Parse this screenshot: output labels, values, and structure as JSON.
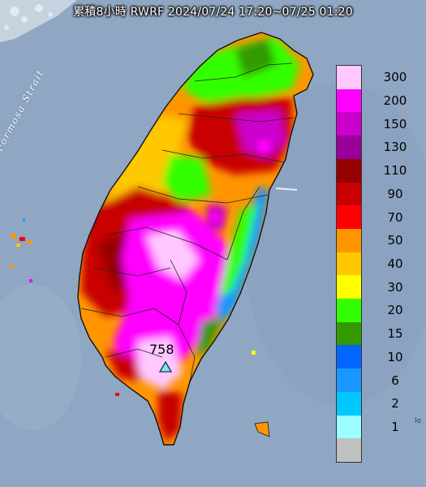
{
  "title": "累積8小時 RWRF 2024/07/24 17:20~07/25 01:20",
  "map_label": "Formosa Strait",
  "max_marker": {
    "value": "758",
    "icon": "triangle-icon",
    "color": "#7fe8e3"
  },
  "edge_label": "lo",
  "legend": {
    "items": [
      {
        "label": "300",
        "color": "#ffc8ff"
      },
      {
        "label": "200",
        "color": "#ff00ff"
      },
      {
        "label": "150",
        "color": "#cc00cc"
      },
      {
        "label": "130",
        "color": "#990099"
      },
      {
        "label": "110",
        "color": "#960000"
      },
      {
        "label": "90",
        "color": "#c80000"
      },
      {
        "label": "70",
        "color": "#ff0000"
      },
      {
        "label": "50",
        "color": "#ff9600"
      },
      {
        "label": "40",
        "color": "#ffc800"
      },
      {
        "label": "30",
        "color": "#ffff00"
      },
      {
        "label": "20",
        "color": "#33ff00"
      },
      {
        "label": "15",
        "color": "#339900"
      },
      {
        "label": "10",
        "color": "#0066ff"
      },
      {
        "label": "6",
        "color": "#1996ff"
      },
      {
        "label": "2",
        "color": "#00c8ff"
      },
      {
        "label": "1",
        "color": "#99ffff"
      }
    ],
    "below_min_color": "#c0c0c0"
  }
}
